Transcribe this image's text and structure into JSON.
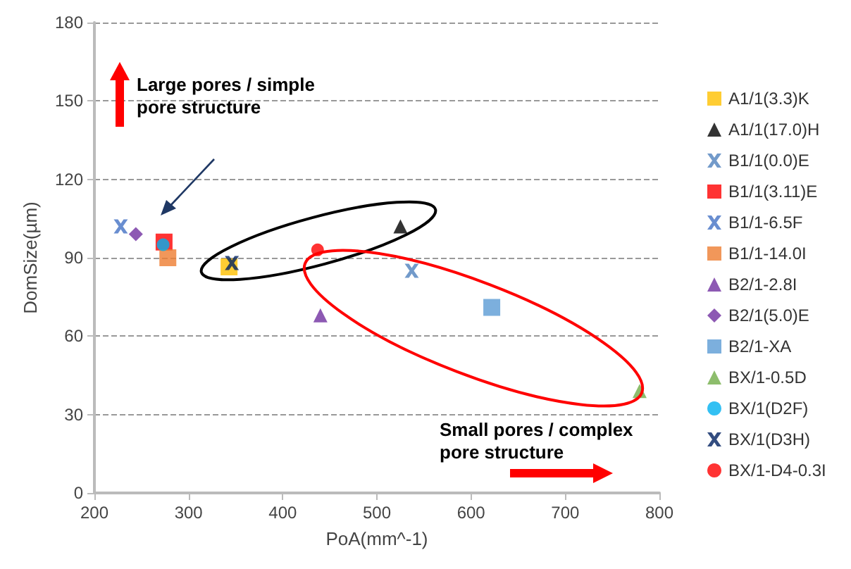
{
  "chart_data": {
    "type": "scatter",
    "xlabel": "PoA(mm^-1)",
    "ylabel": "DomSize(µm)",
    "xlim": [
      200,
      800
    ],
    "xticks": [
      200,
      300,
      400,
      500,
      600,
      700,
      800
    ],
    "ylim": [
      0,
      180
    ],
    "yticks": [
      0,
      30,
      60,
      90,
      120,
      150,
      180
    ],
    "grid": "y",
    "legend": "right",
    "annotations": [
      "Large pores / simple pore structure",
      "Small pores / complex pore structure"
    ],
    "series": [
      {
        "name": "A1/1(3.3)K",
        "color": "#ffc000",
        "marker": "square",
        "x": [
          343
        ],
        "values": [
          86.5
        ]
      },
      {
        "name": "A1/1(17.0)H",
        "color": "#000000",
        "marker": "triangle",
        "x": [
          525
        ],
        "values": [
          102
        ]
      },
      {
        "name": "B1/1(0.0)E",
        "color": "#4f81bd",
        "marker": "cross",
        "x": [
          537
        ],
        "values": [
          85
        ]
      },
      {
        "name": "B1/1(3.11)E",
        "color": "#ff0000",
        "marker": "square",
        "x": [
          274
        ],
        "values": [
          96
        ]
      },
      {
        "name": "B1/1-6.5F",
        "color": "#4472c4",
        "marker": "cross",
        "x": [
          228
        ],
        "values": [
          102
        ]
      },
      {
        "name": "B1/1-14.0I",
        "color": "#ed7d31",
        "marker": "square",
        "x": [
          278
        ],
        "values": [
          90
        ]
      },
      {
        "name": "B2/1-2.8I",
        "color": "#7030a0",
        "marker": "triangle",
        "x": [
          440
        ],
        "values": [
          68
        ]
      },
      {
        "name": "B2/1(5.0)E",
        "color": "#7030a0",
        "marker": "diamond",
        "x": [
          244
        ],
        "values": [
          99
        ]
      },
      {
        "name": "B2/1-XA",
        "color": "#5b9bd5",
        "marker": "square",
        "x": [
          622
        ],
        "values": [
          71
        ]
      },
      {
        "name": "BX/1-0.5D",
        "color": "#70ad47",
        "marker": "triangle",
        "x": [
          779
        ],
        "values": [
          39
        ]
      },
      {
        "name": "BX/1(D2F)",
        "color": "#00b0f0",
        "marker": "circle",
        "x": [
          273
        ],
        "values": [
          95
        ]
      },
      {
        "name": "BX/1(D3H)",
        "color": "#002060",
        "marker": "cross",
        "x": [
          346
        ],
        "values": [
          88
        ]
      },
      {
        "name": "BX/1-D4-0.3I",
        "color": "#ff0000",
        "marker": "circle",
        "x": [
          437
        ],
        "values": [
          93
        ]
      }
    ]
  }
}
